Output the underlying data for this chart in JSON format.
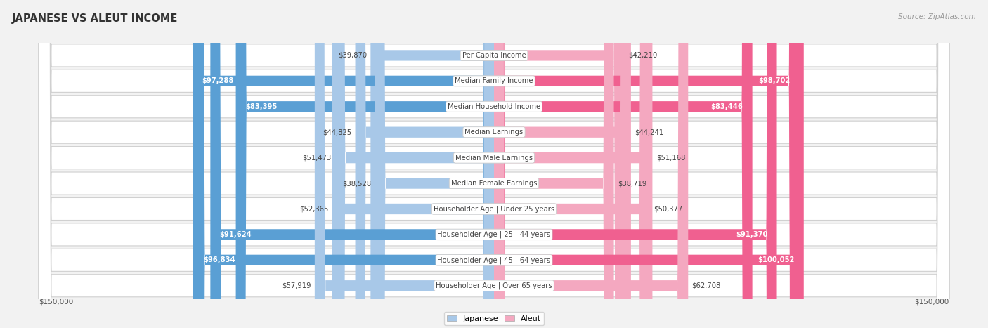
{
  "title": "JAPANESE VS ALEUT INCOME",
  "source": "Source: ZipAtlas.com",
  "max_value": 150000,
  "categories": [
    "Per Capita Income",
    "Median Family Income",
    "Median Household Income",
    "Median Earnings",
    "Median Male Earnings",
    "Median Female Earnings",
    "Householder Age | Under 25 years",
    "Householder Age | 25 - 44 years",
    "Householder Age | 45 - 64 years",
    "Householder Age | Over 65 years"
  ],
  "japanese_values": [
    39870,
    97288,
    83395,
    44825,
    51473,
    38528,
    52365,
    91624,
    96834,
    57919
  ],
  "aleut_values": [
    42210,
    98702,
    83446,
    44241,
    51168,
    38719,
    50377,
    91370,
    100052,
    62708
  ],
  "japanese_labels": [
    "$39,870",
    "$97,288",
    "$83,395",
    "$44,825",
    "$51,473",
    "$38,528",
    "$52,365",
    "$91,624",
    "$96,834",
    "$57,919"
  ],
  "aleut_labels": [
    "$42,210",
    "$98,702",
    "$83,446",
    "$44,241",
    "$51,168",
    "$38,719",
    "$50,377",
    "$91,370",
    "$100,052",
    "$62,708"
  ],
  "japanese_light_color": "#a8c8e8",
  "japanese_dark_color": "#5a9fd4",
  "aleut_light_color": "#f4a8c0",
  "aleut_dark_color": "#f06090",
  "inside_label_threshold": 0.45,
  "bg_color": "#f2f2f2",
  "row_bg_color": "#ffffff",
  "row_border_color": "#d0d0d0",
  "label_dark_color": "#444444",
  "cat_label_color": "#444444"
}
